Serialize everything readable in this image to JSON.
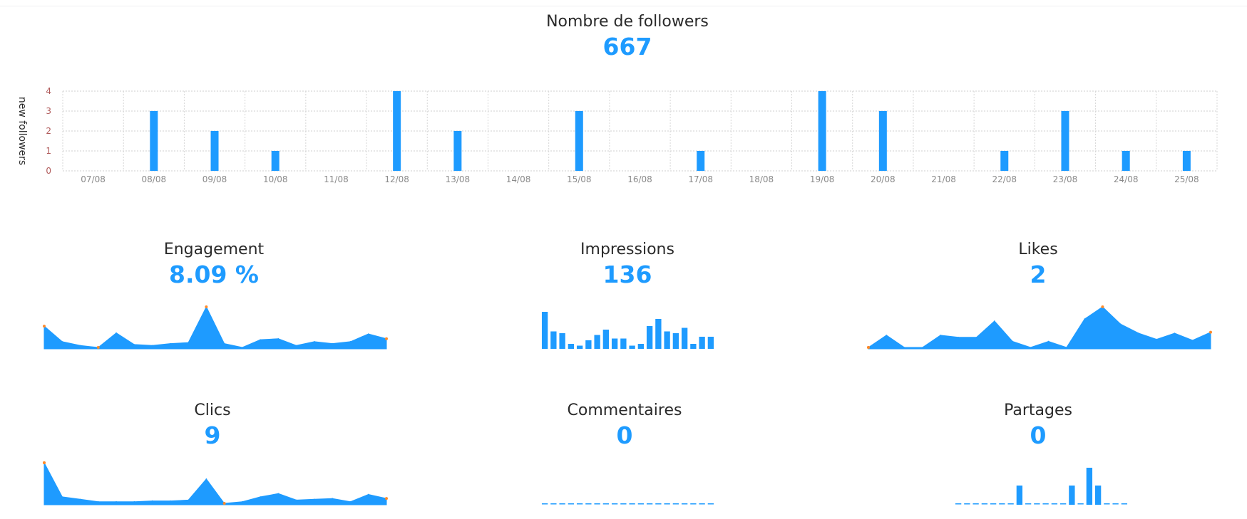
{
  "accent_color": "#1e9bff",
  "followers": {
    "title": "Nombre de followers",
    "value": "667"
  },
  "chart_data": [
    {
      "type": "bar",
      "title": "Nombre de followers",
      "ylabel": "new followers",
      "xlabel": "",
      "ylim": [
        0,
        4
      ],
      "yticks": [
        "0",
        "1",
        "2",
        "3",
        "4"
      ],
      "grid": true,
      "categories": [
        "07/08",
        "08/08",
        "09/08",
        "10/08",
        "11/08",
        "12/08",
        "13/08",
        "14/08",
        "15/08",
        "16/08",
        "17/08",
        "18/08",
        "19/08",
        "20/08",
        "21/08",
        "22/08",
        "23/08",
        "24/08",
        "25/08"
      ],
      "values": [
        0,
        3,
        2,
        1,
        0,
        4,
        2,
        0,
        3,
        0,
        1,
        0,
        4,
        3,
        0,
        1,
        3,
        1,
        1
      ]
    },
    {
      "type": "area",
      "title": "Engagement",
      "display_value": "8.09 %",
      "values": [
        1.1,
        0.3,
        0.1,
        0,
        0.75,
        0.15,
        0.1,
        0.2,
        0.25,
        2.1,
        0.2,
        0,
        0.4,
        0.45,
        0.1,
        0.3,
        0.2,
        0.3,
        0.7,
        0.45
      ]
    },
    {
      "type": "bar",
      "title": "Impressions",
      "display_value": "136",
      "values": [
        20,
        9,
        8,
        2,
        1,
        4,
        7,
        10,
        5,
        5,
        1,
        2,
        12,
        16,
        9,
        8,
        11,
        2,
        6,
        6
      ]
    },
    {
      "type": "area",
      "title": "Likes",
      "display_value": "2",
      "values": [
        0,
        0.6,
        0,
        0,
        0.6,
        0.5,
        0.5,
        1.3,
        0.3,
        0,
        0.3,
        0,
        1.4,
        2,
        1.15,
        0.7,
        0.4,
        0.7,
        0.35,
        0.75
      ]
    },
    {
      "type": "area",
      "title": "Clics",
      "display_value": "9",
      "values": [
        5,
        0.8,
        0.5,
        0.2,
        0.2,
        0.2,
        0.3,
        0.3,
        0.4,
        3,
        0,
        0.2,
        0.8,
        1.2,
        0.4,
        0.5,
        0.6,
        0.2,
        1.1,
        0.6
      ]
    },
    {
      "type": "bar",
      "title": "Commentaires",
      "display_value": "0",
      "values": [
        0,
        0,
        0,
        0,
        0,
        0,
        0,
        0,
        0,
        0,
        0,
        0,
        0,
        0,
        0,
        0,
        0,
        0,
        0,
        0
      ]
    },
    {
      "type": "bar",
      "title": "Partages",
      "display_value": "0",
      "values": [
        0,
        0,
        0,
        0,
        0,
        0,
        0,
        1,
        0,
        0,
        0,
        0,
        0,
        1,
        0,
        2,
        1,
        0,
        0,
        0
      ]
    }
  ]
}
